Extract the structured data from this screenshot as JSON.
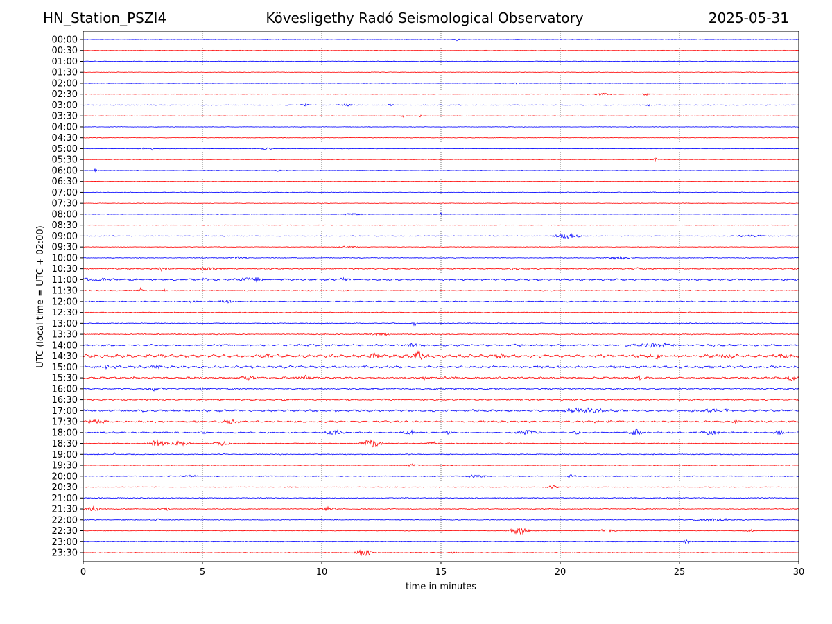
{
  "header": {
    "station": "HN_Station_PSZI4",
    "observatory": "Kövesligethy Radó Seismological Observatory",
    "date": "2025-05-31"
  },
  "chart_data": {
    "type": "line",
    "title": "Kövesligethy Radó Seismological Observatory",
    "xlabel": "time in minutes",
    "ylabel": "UTC (local time = UTC + 02:00)",
    "xlim": [
      0,
      30
    ],
    "xticks": [
      "0",
      "5",
      "10",
      "15",
      "20",
      "25",
      "30"
    ],
    "grid": "vertical dotted at every 5 minutes",
    "colors": {
      "even_rows": "#0000ff",
      "odd_rows": "#ff0000"
    },
    "rows": [
      "00:00",
      "00:30",
      "01:00",
      "01:30",
      "02:00",
      "02:30",
      "03:00",
      "03:30",
      "04:00",
      "04:30",
      "05:00",
      "05:30",
      "06:00",
      "06:30",
      "07:00",
      "07:30",
      "08:00",
      "08:30",
      "09:00",
      "09:30",
      "10:00",
      "10:30",
      "11:00",
      "11:30",
      "12:00",
      "12:30",
      "13:00",
      "13:30",
      "14:00",
      "14:30",
      "15:00",
      "15:30",
      "16:00",
      "16:30",
      "17:00",
      "17:30",
      "18:00",
      "18:30",
      "19:00",
      "19:30",
      "20:00",
      "20:30",
      "21:00",
      "21:30",
      "22:00",
      "22:30",
      "23:00",
      "23:30"
    ],
    "noise_level": [
      0.3,
      0.3,
      0.4,
      0.3,
      0.3,
      0.3,
      0.4,
      0.3,
      0.3,
      0.3,
      0.3,
      0.3,
      0.3,
      0.3,
      0.4,
      0.3,
      0.3,
      0.3,
      0.4,
      0.3,
      0.4,
      0.6,
      0.8,
      0.5,
      0.6,
      0.5,
      0.5,
      0.5,
      0.8,
      1.2,
      1.0,
      0.8,
      0.7,
      0.7,
      0.9,
      0.8,
      0.7,
      0.5,
      0.5,
      0.4,
      0.5,
      0.4,
      0.5,
      0.5,
      0.4,
      0.4,
      0.4,
      0.4
    ],
    "events": [
      {
        "row": "00:00",
        "t": 15.7,
        "amp": 1.5,
        "dur": 0.3
      },
      {
        "row": "02:00",
        "t": 18.2,
        "amp": 1.5,
        "dur": 0.2
      },
      {
        "row": "02:30",
        "t": 21.8,
        "amp": 1.5,
        "dur": 1.0
      },
      {
        "row": "02:30",
        "t": 23.6,
        "amp": 1.5,
        "dur": 0.5
      },
      {
        "row": "03:00",
        "t": 9.3,
        "amp": 1.5,
        "dur": 0.5
      },
      {
        "row": "03:00",
        "t": 11.0,
        "amp": 1.3,
        "dur": 1.0
      },
      {
        "row": "03:00",
        "t": 12.9,
        "amp": 1.5,
        "dur": 0.3
      },
      {
        "row": "03:00",
        "t": 23.7,
        "amp": 1.5,
        "dur": 0.3
      },
      {
        "row": "03:30",
        "t": 13.4,
        "amp": 2.0,
        "dur": 0.2
      },
      {
        "row": "03:30",
        "t": 14.1,
        "amp": 1.5,
        "dur": 0.2
      },
      {
        "row": "05:00",
        "t": 2.5,
        "amp": 2.5,
        "dur": 0.1
      },
      {
        "row": "05:00",
        "t": 2.9,
        "amp": 2.5,
        "dur": 0.1
      },
      {
        "row": "05:00",
        "t": 7.7,
        "amp": 1.5,
        "dur": 0.6
      },
      {
        "row": "05:30",
        "t": 24.0,
        "amp": 2.0,
        "dur": 0.2
      },
      {
        "row": "06:00",
        "t": 0.5,
        "amp": 3.0,
        "dur": 0.15
      },
      {
        "row": "06:00",
        "t": 8.2,
        "amp": 1.5,
        "dur": 0.2
      },
      {
        "row": "06:00",
        "t": 18.4,
        "amp": 2.0,
        "dur": 0.1
      },
      {
        "row": "08:00",
        "t": 15.0,
        "amp": 2.5,
        "dur": 0.1
      },
      {
        "row": "08:00",
        "t": 11.3,
        "amp": 1.3,
        "dur": 1.0
      },
      {
        "row": "09:00",
        "t": 20.3,
        "amp": 3.0,
        "dur": 1.2
      },
      {
        "row": "09:00",
        "t": 28.0,
        "amp": 1.2,
        "dur": 2.0
      },
      {
        "row": "09:30",
        "t": 11.0,
        "amp": 1.3,
        "dur": 1.0
      },
      {
        "row": "10:00",
        "t": 6.5,
        "amp": 1.5,
        "dur": 1.0
      },
      {
        "row": "10:00",
        "t": 22.5,
        "amp": 2.0,
        "dur": 1.5
      },
      {
        "row": "10:30",
        "t": 3.3,
        "amp": 2.5,
        "dur": 0.6
      },
      {
        "row": "10:30",
        "t": 5.2,
        "amp": 2.0,
        "dur": 1.2
      },
      {
        "row": "10:30",
        "t": 18.0,
        "amp": 2.0,
        "dur": 0.6
      },
      {
        "row": "10:30",
        "t": 23.2,
        "amp": 2.5,
        "dur": 0.3
      },
      {
        "row": "11:00",
        "t": 0.1,
        "amp": 5.0,
        "dur": 0.2
      },
      {
        "row": "11:00",
        "t": 0.8,
        "amp": 2.0,
        "dur": 1.2
      },
      {
        "row": "11:00",
        "t": 5.1,
        "amp": 3.0,
        "dur": 0.3
      },
      {
        "row": "11:00",
        "t": 7.0,
        "amp": 3.0,
        "dur": 1.5
      },
      {
        "row": "11:00",
        "t": 10.9,
        "amp": 3.5,
        "dur": 0.3
      },
      {
        "row": "11:30",
        "t": 2.4,
        "amp": 4.0,
        "dur": 0.2
      },
      {
        "row": "11:30",
        "t": 3.4,
        "amp": 2.0,
        "dur": 0.1
      },
      {
        "row": "12:00",
        "t": 4.6,
        "amp": 2.0,
        "dur": 0.4
      },
      {
        "row": "12:00",
        "t": 6.0,
        "amp": 3.0,
        "dur": 0.5
      },
      {
        "row": "13:00",
        "t": 13.9,
        "amp": 3.5,
        "dur": 0.2
      },
      {
        "row": "13:30",
        "t": 12.5,
        "amp": 1.5,
        "dur": 1.0
      },
      {
        "row": "14:00",
        "t": 1.5,
        "amp": 2.0,
        "dur": 0.5
      },
      {
        "row": "14:00",
        "t": 13.8,
        "amp": 3.0,
        "dur": 0.5
      },
      {
        "row": "14:00",
        "t": 24.0,
        "amp": 2.5,
        "dur": 2.0
      },
      {
        "row": "14:30",
        "t": 7.8,
        "amp": 3.0,
        "dur": 0.5
      },
      {
        "row": "14:30",
        "t": 12.2,
        "amp": 4.0,
        "dur": 0.5
      },
      {
        "row": "14:30",
        "t": 14.1,
        "amp": 5.5,
        "dur": 0.8
      },
      {
        "row": "14:30",
        "t": 17.5,
        "amp": 3.0,
        "dur": 0.8
      },
      {
        "row": "14:30",
        "t": 24.0,
        "amp": 3.0,
        "dur": 0.8
      },
      {
        "row": "14:30",
        "t": 27.0,
        "amp": 3.0,
        "dur": 0.8
      },
      {
        "row": "14:30",
        "t": 29.3,
        "amp": 3.0,
        "dur": 1.2
      },
      {
        "row": "15:00",
        "t": 1.0,
        "amp": 2.5,
        "dur": 1.0
      },
      {
        "row": "15:00",
        "t": 3.1,
        "amp": 3.0,
        "dur": 0.4
      },
      {
        "row": "15:30",
        "t": 7.0,
        "amp": 3.0,
        "dur": 0.8
      },
      {
        "row": "15:30",
        "t": 9.3,
        "amp": 3.0,
        "dur": 0.6
      },
      {
        "row": "15:30",
        "t": 14.3,
        "amp": 3.0,
        "dur": 0.3
      },
      {
        "row": "15:30",
        "t": 23.3,
        "amp": 2.5,
        "dur": 0.5
      },
      {
        "row": "15:30",
        "t": 29.7,
        "amp": 4.0,
        "dur": 0.4
      },
      {
        "row": "16:00",
        "t": 5.0,
        "amp": 3.0,
        "dur": 0.2
      },
      {
        "row": "16:00",
        "t": 3.0,
        "amp": 2.0,
        "dur": 1.0
      },
      {
        "row": "17:00",
        "t": 21.0,
        "amp": 3.0,
        "dur": 2.0
      },
      {
        "row": "17:00",
        "t": 26.5,
        "amp": 2.0,
        "dur": 2.0
      },
      {
        "row": "17:30",
        "t": 0.6,
        "amp": 2.5,
        "dur": 1.0
      },
      {
        "row": "17:30",
        "t": 6.2,
        "amp": 2.5,
        "dur": 0.8
      },
      {
        "row": "17:30",
        "t": 22.0,
        "amp": 2.5,
        "dur": 0.3
      },
      {
        "row": "17:30",
        "t": 27.4,
        "amp": 2.5,
        "dur": 0.2
      },
      {
        "row": "18:00",
        "t": 5.0,
        "amp": 2.5,
        "dur": 0.4
      },
      {
        "row": "18:00",
        "t": 10.5,
        "amp": 3.5,
        "dur": 0.8
      },
      {
        "row": "18:00",
        "t": 13.7,
        "amp": 3.0,
        "dur": 0.6
      },
      {
        "row": "18:00",
        "t": 15.3,
        "amp": 3.5,
        "dur": 0.3
      },
      {
        "row": "18:00",
        "t": 18.6,
        "amp": 3.5,
        "dur": 0.8
      },
      {
        "row": "18:00",
        "t": 20.7,
        "amp": 3.0,
        "dur": 0.3
      },
      {
        "row": "18:00",
        "t": 23.2,
        "amp": 4.0,
        "dur": 0.6
      },
      {
        "row": "18:00",
        "t": 26.3,
        "amp": 3.0,
        "dur": 1.0
      },
      {
        "row": "18:00",
        "t": 29.2,
        "amp": 3.0,
        "dur": 0.5
      },
      {
        "row": "18:30",
        "t": 3.1,
        "amp": 4.5,
        "dur": 0.8
      },
      {
        "row": "18:30",
        "t": 4.0,
        "amp": 3.0,
        "dur": 1.0
      },
      {
        "row": "18:30",
        "t": 5.8,
        "amp": 3.0,
        "dur": 0.8
      },
      {
        "row": "18:30",
        "t": 12.1,
        "amp": 5.0,
        "dur": 1.0
      },
      {
        "row": "18:30",
        "t": 14.7,
        "amp": 2.5,
        "dur": 0.5
      },
      {
        "row": "19:00",
        "t": 1.3,
        "amp": 3.0,
        "dur": 0.1
      },
      {
        "row": "19:30",
        "t": 13.8,
        "amp": 2.0,
        "dur": 0.6
      },
      {
        "row": "20:00",
        "t": 4.5,
        "amp": 1.5,
        "dur": 0.8
      },
      {
        "row": "20:00",
        "t": 16.5,
        "amp": 2.0,
        "dur": 1.0
      },
      {
        "row": "20:00",
        "t": 20.5,
        "amp": 2.0,
        "dur": 0.6
      },
      {
        "row": "20:30",
        "t": 19.7,
        "amp": 2.0,
        "dur": 0.6
      },
      {
        "row": "21:30",
        "t": 0.4,
        "amp": 4.0,
        "dur": 0.6
      },
      {
        "row": "21:30",
        "t": 3.5,
        "amp": 2.0,
        "dur": 0.5
      },
      {
        "row": "21:30",
        "t": 10.3,
        "amp": 2.5,
        "dur": 0.7
      },
      {
        "row": "22:00",
        "t": 3.1,
        "amp": 2.0,
        "dur": 0.3
      },
      {
        "row": "22:00",
        "t": 26.5,
        "amp": 2.0,
        "dur": 2.5
      },
      {
        "row": "22:30",
        "t": 18.3,
        "amp": 5.0,
        "dur": 1.0
      },
      {
        "row": "22:30",
        "t": 22.0,
        "amp": 2.5,
        "dur": 1.0
      },
      {
        "row": "22:30",
        "t": 28.0,
        "amp": 2.0,
        "dur": 0.5
      },
      {
        "row": "23:00",
        "t": 25.3,
        "amp": 3.0,
        "dur": 0.4
      },
      {
        "row": "23:30",
        "t": 11.8,
        "amp": 4.0,
        "dur": 1.0
      },
      {
        "row": "23:30",
        "t": 15.5,
        "amp": 1.5,
        "dur": 0.4
      }
    ]
  }
}
